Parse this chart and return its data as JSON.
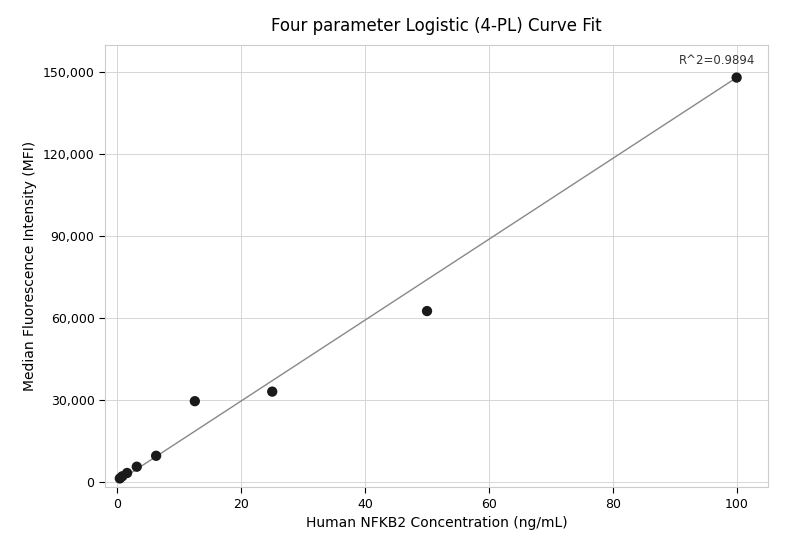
{
  "title": "Four parameter Logistic (4-PL) Curve Fit",
  "xlabel": "Human NFKB2 Concentration (ng/mL)",
  "ylabel": "Median Fluorescence Intensity (MFI)",
  "r_squared": "R^2=0.9894",
  "scatter_x": [
    0.39,
    0.78,
    1.56,
    3.125,
    6.25,
    12.5,
    25.0,
    50.0,
    100.0
  ],
  "scatter_y": [
    1200,
    2000,
    3200,
    5500,
    9500,
    29500,
    33000,
    62500,
    148000
  ],
  "curve_x": [
    0.0,
    100.0
  ],
  "curve_y": [
    0.0,
    148000.0
  ],
  "xlim": [
    -2,
    105
  ],
  "ylim": [
    -2000,
    160000
  ],
  "xticks": [
    0,
    20,
    40,
    60,
    80,
    100
  ],
  "yticks": [
    0,
    30000,
    60000,
    90000,
    120000,
    150000
  ],
  "background_color": "#ffffff",
  "grid_color": "#d0d0d0",
  "line_color": "#888888",
  "dot_color": "#1a1a1a",
  "title_fontsize": 12,
  "label_fontsize": 10,
  "tick_fontsize": 9,
  "annotation_fontsize": 8.5,
  "dot_size": 55,
  "figwidth": 8.08,
  "figheight": 5.6,
  "dpi": 100
}
